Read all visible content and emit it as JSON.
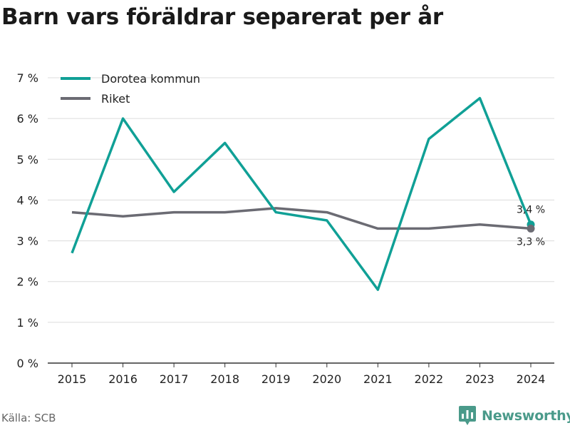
{
  "title": "Barn vars föräldrar separerat per år",
  "source": "Källa: SCB",
  "brand": {
    "name": "Newsworthy",
    "icon": "newsworthy-logo-icon",
    "color": "#4a9a8a"
  },
  "chart_data": {
    "type": "line",
    "categories": [
      "2015",
      "2016",
      "2017",
      "2018",
      "2019",
      "2020",
      "2021",
      "2022",
      "2023",
      "2024"
    ],
    "series": [
      {
        "name": "Dorotea kommun",
        "color": "#10a096",
        "values": [
          2.7,
          6.0,
          4.2,
          5.4,
          3.7,
          3.5,
          1.8,
          5.5,
          6.5,
          3.4
        ]
      },
      {
        "name": "Riket",
        "color": "#6b6b73",
        "values": [
          3.7,
          3.6,
          3.7,
          3.7,
          3.8,
          3.7,
          3.3,
          3.3,
          3.4,
          3.3
        ]
      }
    ],
    "ylim": [
      0,
      7
    ],
    "yticks": [
      0,
      1,
      2,
      3,
      4,
      5,
      6,
      7
    ],
    "ytick_labels": [
      "0 %",
      "1 %",
      "2 %",
      "3 %",
      "4 %",
      "5 %",
      "6 %",
      "7 %"
    ],
    "end_labels": [
      "3,4 %",
      "3,3 %"
    ],
    "grid": true,
    "legend_position": "top-left",
    "xlabel": "",
    "ylabel": ""
  }
}
